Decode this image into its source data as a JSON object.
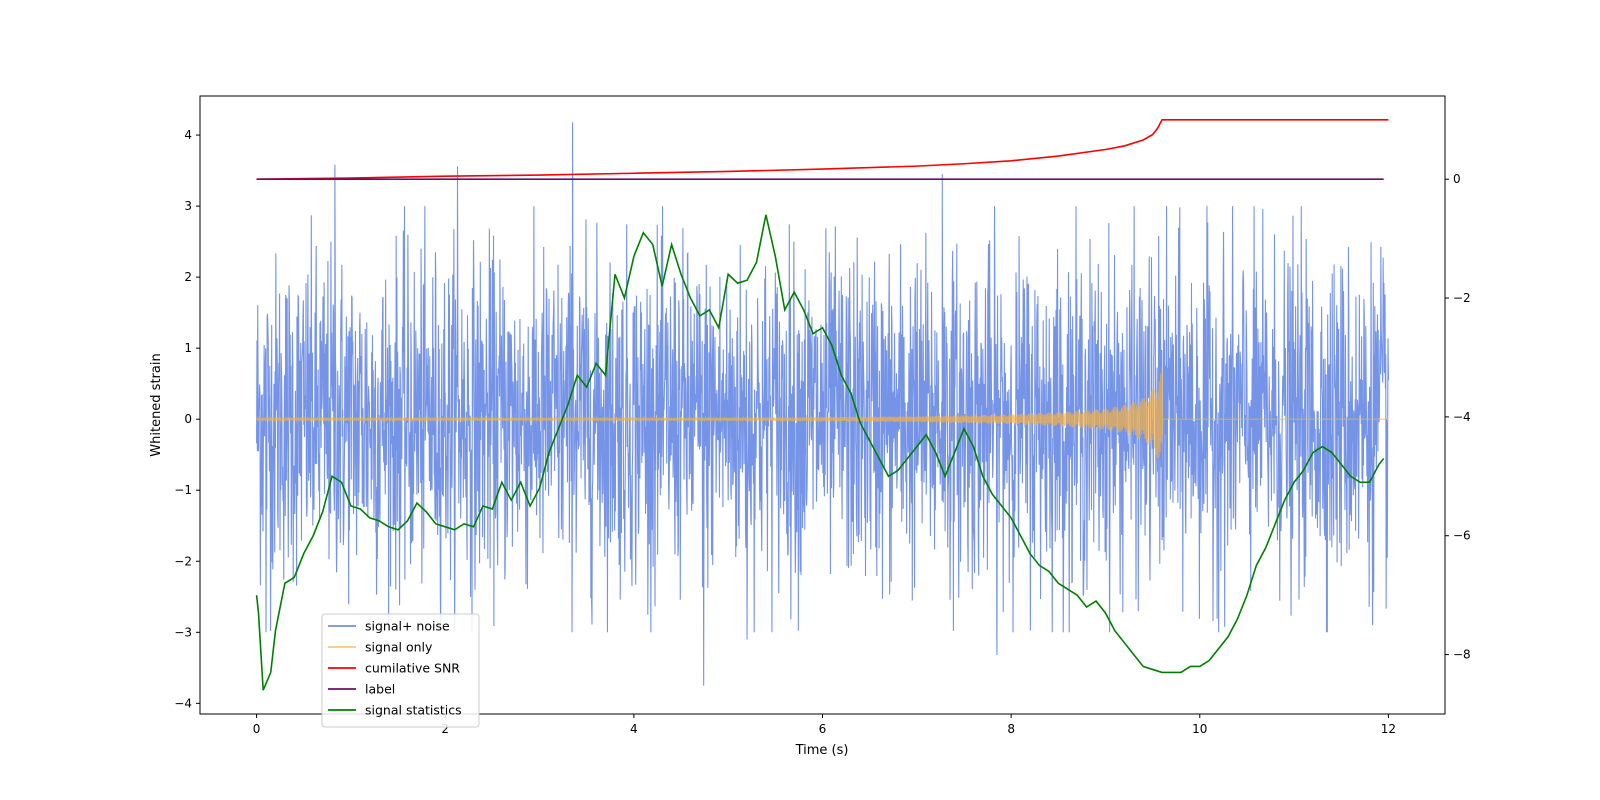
{
  "chart_data": {
    "type": "line",
    "xlabel": "Time (s)",
    "ylabel_left": "Whitened strain",
    "ylabel_right": "",
    "xlim": [
      -0.6,
      12.6
    ],
    "ylim_left": [
      -4.15,
      4.55
    ],
    "ylim_right": [
      -9.0,
      1.4
    ],
    "x_ticks": [
      0,
      2,
      4,
      6,
      8,
      10,
      12
    ],
    "x_tick_labels": [
      "0",
      "2",
      "4",
      "6",
      "8",
      "10",
      "12"
    ],
    "y_ticks_left": [
      4,
      3,
      2,
      1,
      0,
      -1,
      -2,
      -3,
      -4
    ],
    "y_tick_labels_left": [
      "4",
      "3",
      "2",
      "1",
      "0",
      "−1",
      "−2",
      "−3",
      "−4"
    ],
    "y_ticks_right": [
      0,
      -2,
      -4,
      -6,
      -8
    ],
    "y_tick_labels_right": [
      "0",
      "−2",
      "−4",
      "−6",
      "−8"
    ],
    "grid": false,
    "legend": {
      "position": "lower-left",
      "entries": [
        "signal+ noise",
        "signal only",
        "cumilative SNR",
        "label",
        "signal statistics"
      ]
    },
    "series": [
      {
        "name": "signal+ noise",
        "axis": "left",
        "color": "#6f8ee6",
        "style": "noise-band",
        "x_range": [
          0,
          12
        ],
        "typical_range": [
          -2.3,
          2.5
        ],
        "spikes": [
          [
            0.83,
            3.58
          ],
          [
            2.13,
            3.56
          ],
          [
            3.35,
            4.18
          ],
          [
            7.27,
            3.45
          ],
          [
            4.74,
            -3.75
          ],
          [
            7.85,
            -3.32
          ],
          [
            5.2,
            -3.1
          ],
          [
            0.1,
            -3.0
          ]
        ]
      },
      {
        "name": "signal only",
        "axis": "left",
        "color": "#f5b041",
        "style": "chirp",
        "x": [
          0,
          1,
          2,
          3,
          4,
          5,
          6,
          7,
          8,
          8.5,
          9.0,
          9.2,
          9.4,
          9.5,
          9.55,
          9.6,
          9.61,
          12
        ],
        "envelope": [
          0.02,
          0.02,
          0.02,
          0.02,
          0.02,
          0.02,
          0.03,
          0.04,
          0.07,
          0.1,
          0.15,
          0.2,
          0.3,
          0.42,
          0.55,
          0.7,
          0.0,
          0.0
        ]
      },
      {
        "name": "cumilative SNR",
        "axis": "right",
        "color": "#ff0000",
        "x": [
          0,
          1,
          2,
          3,
          4,
          5,
          6,
          7,
          7.5,
          8,
          8.5,
          9,
          9.2,
          9.4,
          9.5,
          9.55,
          9.6,
          12
        ],
        "values": [
          0.0,
          0.02,
          0.05,
          0.07,
          0.1,
          0.13,
          0.17,
          0.22,
          0.26,
          0.31,
          0.39,
          0.5,
          0.56,
          0.66,
          0.75,
          0.85,
          1.0,
          1.0
        ]
      },
      {
        "name": "label",
        "axis": "right",
        "color": "#6a0f6a",
        "x": [
          0,
          11.95
        ],
        "values": [
          0.0,
          0.0
        ]
      },
      {
        "name": "signal statistics",
        "axis": "right",
        "color": "#008000",
        "x": [
          0.0,
          0.02,
          0.07,
          0.15,
          0.2,
          0.3,
          0.4,
          0.5,
          0.6,
          0.7,
          0.8,
          0.9,
          1.0,
          1.1,
          1.2,
          1.3,
          1.4,
          1.5,
          1.6,
          1.7,
          1.8,
          1.9,
          2.0,
          2.1,
          2.2,
          2.3,
          2.4,
          2.5,
          2.6,
          2.7,
          2.8,
          2.9,
          3.0,
          3.1,
          3.2,
          3.3,
          3.4,
          3.5,
          3.6,
          3.7,
          3.8,
          3.9,
          4.0,
          4.1,
          4.2,
          4.3,
          4.4,
          4.5,
          4.6,
          4.7,
          4.8,
          4.9,
          5.0,
          5.1,
          5.2,
          5.3,
          5.4,
          5.5,
          5.6,
          5.7,
          5.8,
          5.9,
          6.0,
          6.1,
          6.2,
          6.3,
          6.4,
          6.5,
          6.6,
          6.7,
          6.8,
          6.9,
          7.0,
          7.1,
          7.2,
          7.3,
          7.4,
          7.5,
          7.6,
          7.7,
          7.8,
          7.9,
          8.0,
          8.1,
          8.2,
          8.3,
          8.4,
          8.5,
          8.6,
          8.7,
          8.8,
          8.9,
          9.0,
          9.1,
          9.2,
          9.3,
          9.4,
          9.5,
          9.6,
          9.7,
          9.8,
          9.9,
          10.0,
          10.1,
          10.2,
          10.3,
          10.4,
          10.5,
          10.6,
          10.7,
          10.8,
          10.9,
          11.0,
          11.1,
          11.2,
          11.3,
          11.4,
          11.5,
          11.6,
          11.7,
          11.8,
          11.9,
          11.95
        ],
        "values": [
          -7.0,
          -7.3,
          -8.6,
          -8.3,
          -7.6,
          -6.8,
          -6.7,
          -6.3,
          -6.0,
          -5.6,
          -5.0,
          -5.1,
          -5.5,
          -5.55,
          -5.7,
          -5.75,
          -5.85,
          -5.9,
          -5.75,
          -5.45,
          -5.6,
          -5.8,
          -5.85,
          -5.9,
          -5.8,
          -5.85,
          -5.5,
          -5.55,
          -5.1,
          -5.4,
          -5.1,
          -5.5,
          -5.2,
          -4.6,
          -4.2,
          -3.8,
          -3.3,
          -3.5,
          -3.1,
          -3.3,
          -1.6,
          -2.0,
          -1.3,
          -0.9,
          -1.1,
          -1.8,
          -1.1,
          -1.6,
          -2.0,
          -2.3,
          -2.2,
          -2.5,
          -1.6,
          -1.75,
          -1.7,
          -1.4,
          -0.6,
          -1.3,
          -2.2,
          -1.9,
          -2.2,
          -2.6,
          -2.5,
          -2.8,
          -3.3,
          -3.6,
          -4.1,
          -4.4,
          -4.7,
          -5.0,
          -4.9,
          -4.7,
          -4.5,
          -4.3,
          -4.6,
          -5.0,
          -4.6,
          -4.2,
          -4.5,
          -5.0,
          -5.3,
          -5.5,
          -5.7,
          -6.0,
          -6.3,
          -6.5,
          -6.6,
          -6.8,
          -6.9,
          -7.0,
          -7.2,
          -7.1,
          -7.3,
          -7.6,
          -7.8,
          -8.0,
          -8.2,
          -8.25,
          -8.3,
          -8.3,
          -8.3,
          -8.2,
          -8.2,
          -8.1,
          -7.9,
          -7.7,
          -7.4,
          -7.0,
          -6.5,
          -6.2,
          -5.8,
          -5.4,
          -5.1,
          -4.9,
          -4.6,
          -4.5,
          -4.6,
          -4.8,
          -5.0,
          -5.1,
          -5.1,
          -4.8,
          -4.7
        ]
      }
    ]
  }
}
